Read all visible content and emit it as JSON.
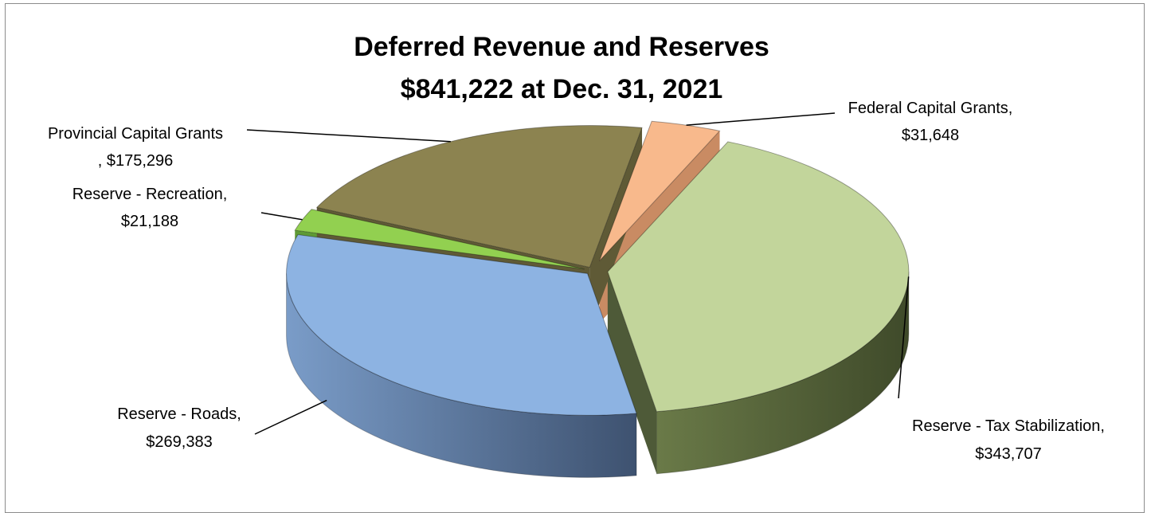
{
  "chart_data": {
    "type": "pie",
    "title_lines": [
      "Deferred Revenue and Reserves",
      "$841,222 at Dec. 31, 2021"
    ],
    "slices": [
      {
        "name": "Federal Capital Grants",
        "value": 31648,
        "color": "#f8b98c",
        "label_lines": [
          "Federal Capital Grants,",
          "$31,648"
        ]
      },
      {
        "name": "Reserve - Tax Stabilization",
        "value": 343707,
        "color": "#c2d59b",
        "label_lines": [
          "Reserve - Tax Stabilization,",
          "$343,707"
        ]
      },
      {
        "name": "Reserve - Roads",
        "value": 269383,
        "color": "#8db3e2",
        "label_lines": [
          "Reserve - Roads,",
          "$269,383"
        ]
      },
      {
        "name": "Reserve - Recreation",
        "value": 21188,
        "color": "#92d050",
        "label_lines": [
          "Reserve - Recreation,",
          "$21,188"
        ]
      },
      {
        "name": "Provincial Capital Grants",
        "value": 175296,
        "color": "#8c8350",
        "label_lines": [
          "Provincial Capital Grants",
          ", $175,296"
        ]
      }
    ]
  }
}
